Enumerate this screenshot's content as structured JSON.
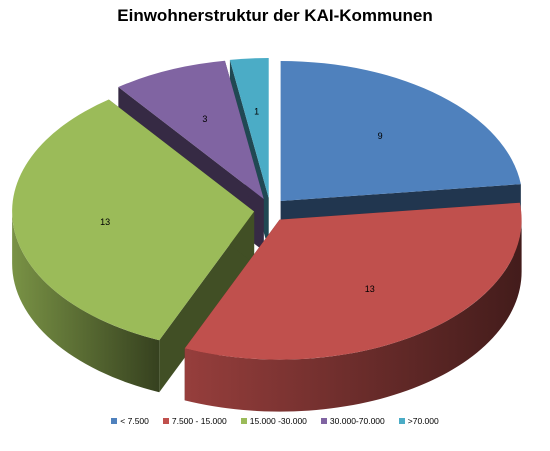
{
  "chart_data": {
    "type": "pie",
    "title": "Einwohnerstruktur  der KAI-Kommunen",
    "categories": [
      "< 7.500",
      "7.500 - 15.000",
      "15.000 -30.000",
      "30.000-70.000",
      ">70.000"
    ],
    "values": [
      9,
      13,
      13,
      3,
      1
    ],
    "colors": [
      "#4F81BD",
      "#C0504D",
      "#9BBB59",
      "#8064A2",
      "#4BACC6"
    ],
    "exploded": true,
    "style": "3d",
    "legend_position": "bottom"
  }
}
